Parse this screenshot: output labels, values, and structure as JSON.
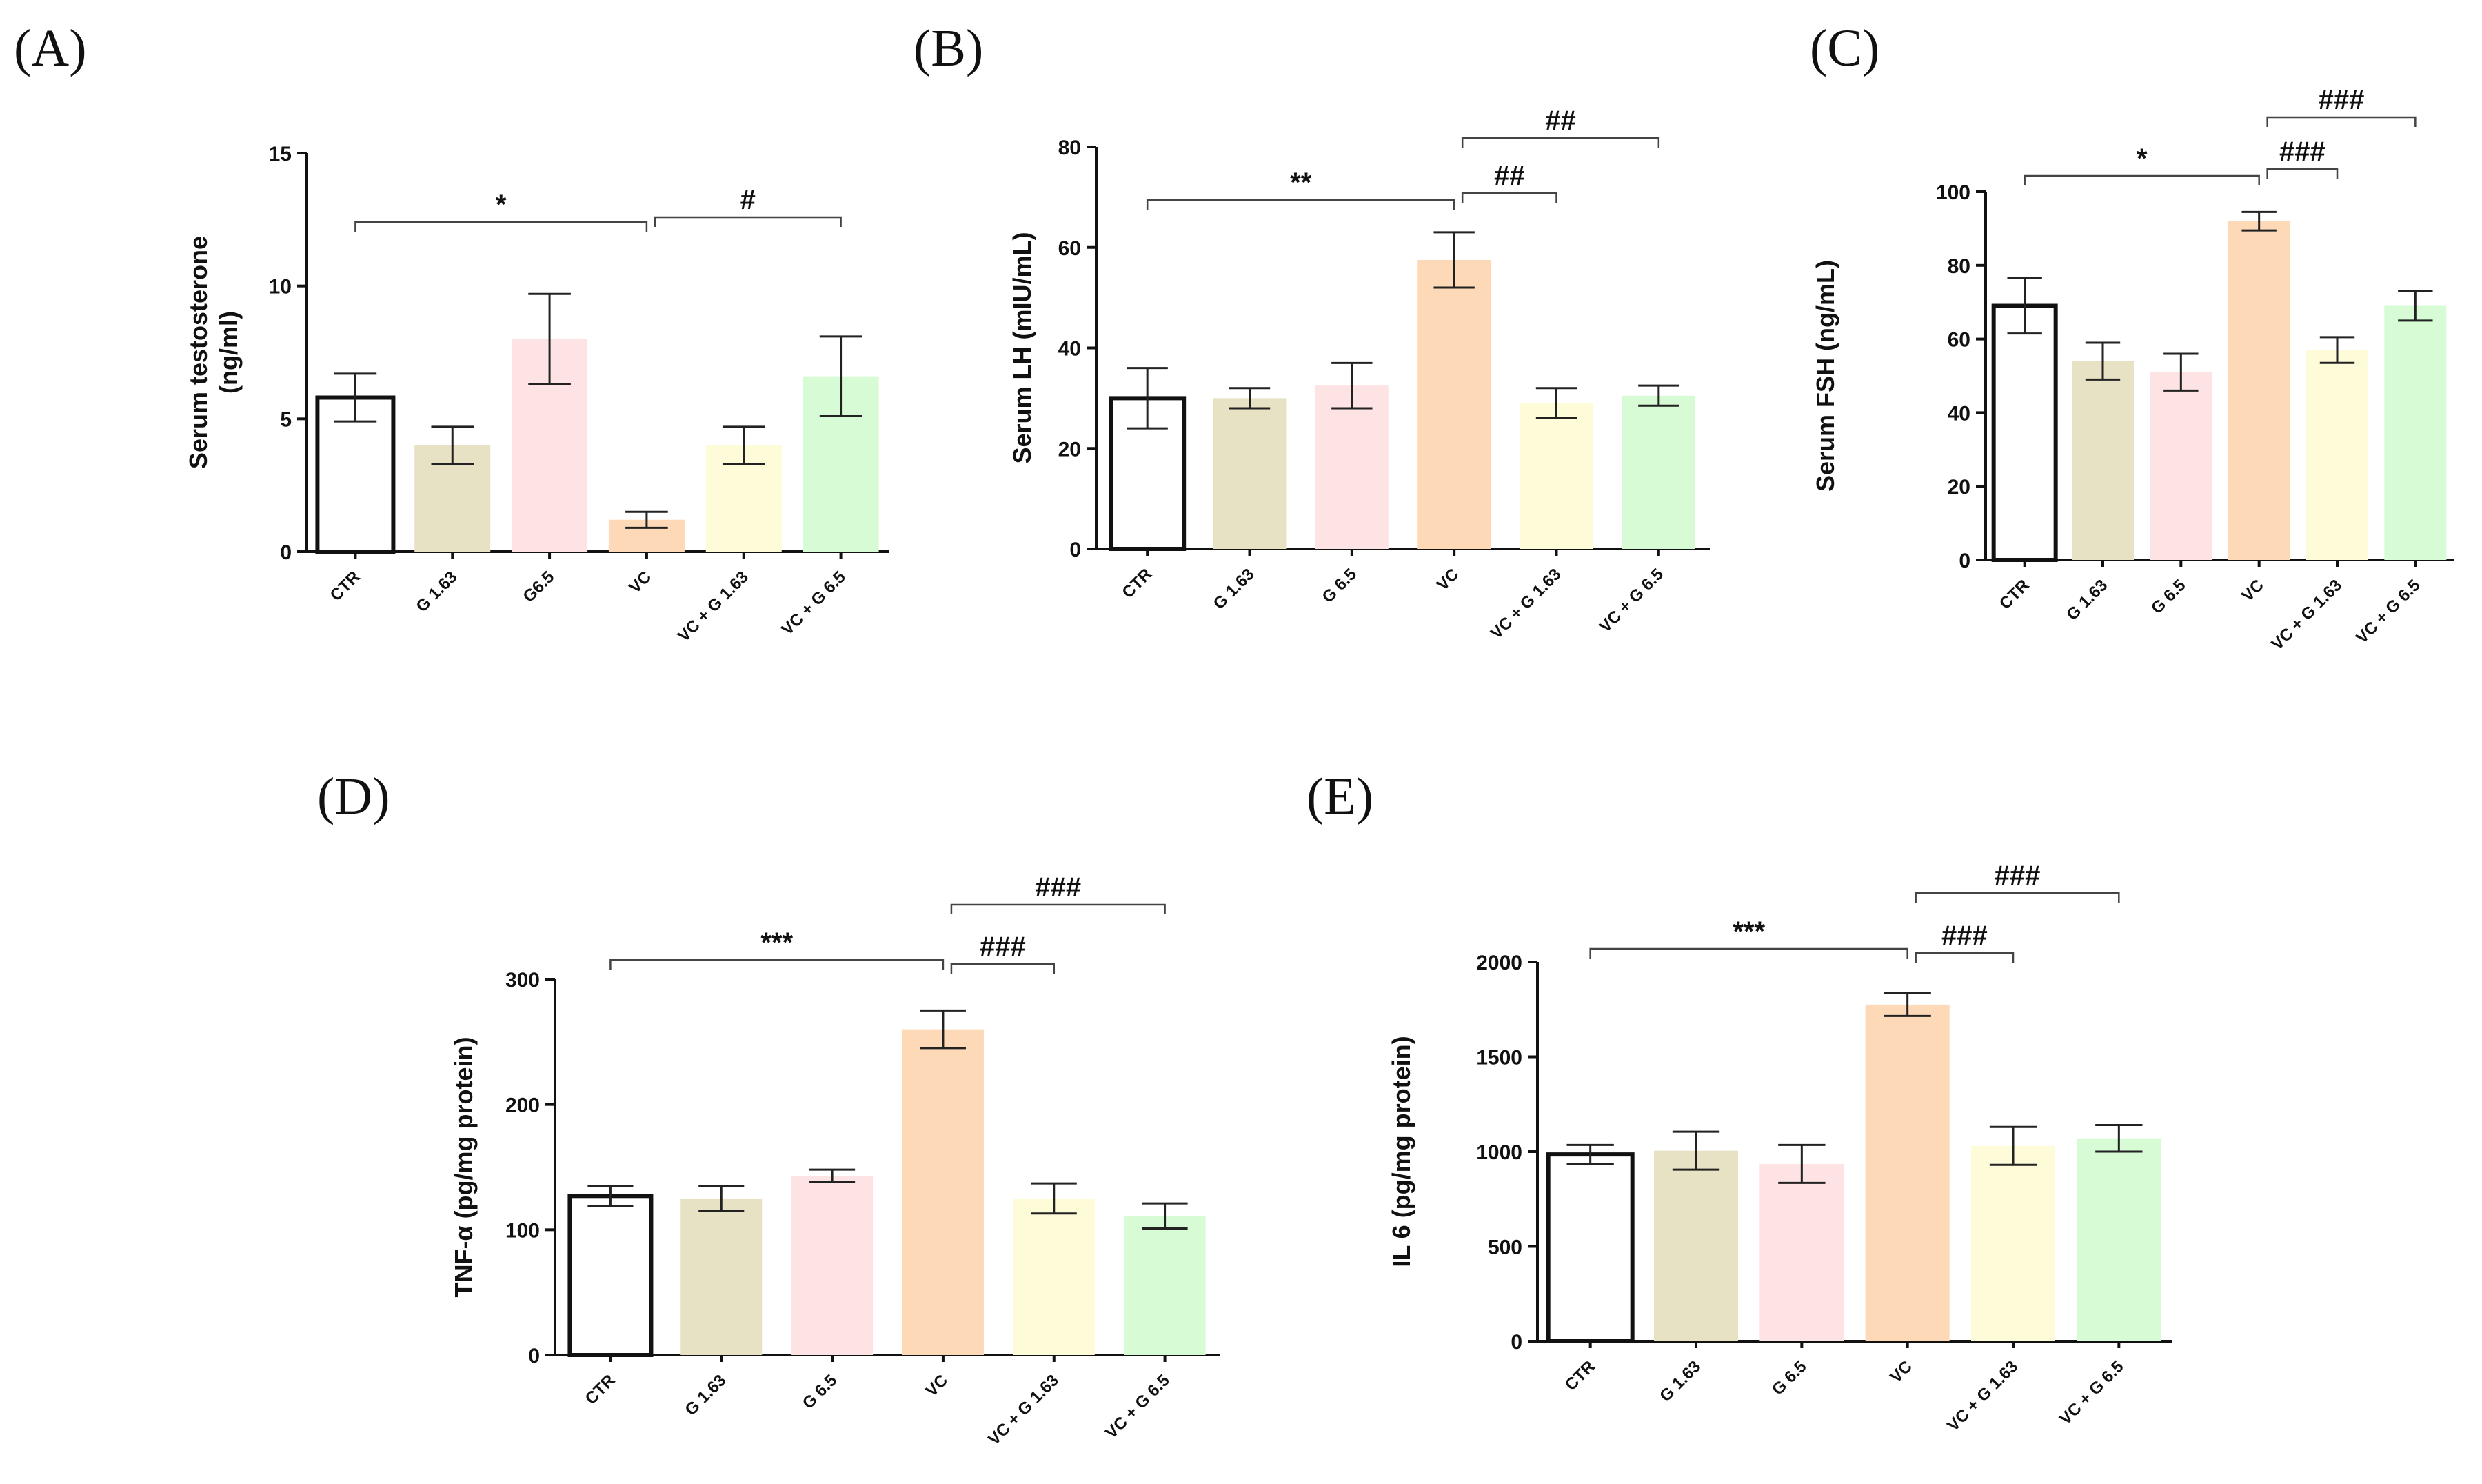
{
  "chart_data": [
    {
      "panel": "(A)",
      "type": "bar",
      "ylabel": "Serum testosterone\n(ng/ml)",
      "ylim": [
        0,
        15
      ],
      "yticks": [
        0,
        5,
        10,
        15
      ],
      "categories": [
        "CTR",
        "G 1.63",
        "G6.5",
        "VC",
        "VC + G 1.63",
        "VC + G 6.5"
      ],
      "values": [
        5.8,
        4.0,
        8.0,
        1.2,
        4.0,
        6.6
      ],
      "errors": [
        0.9,
        0.7,
        1.7,
        0.3,
        0.7,
        1.5
      ],
      "significance": [
        {
          "from": 0,
          "to": 3,
          "label": "*"
        },
        {
          "from": 3,
          "to": 5,
          "label": "#"
        }
      ]
    },
    {
      "panel": "(B)",
      "type": "bar",
      "ylabel": "Serum LH (mIU/mL)",
      "ylim": [
        0,
        80
      ],
      "yticks": [
        0,
        20,
        40,
        60,
        80
      ],
      "categories": [
        "CTR",
        "G 1.63",
        "G 6.5",
        "VC",
        "VC + G 1.63",
        "VC + G 6.5"
      ],
      "values": [
        30,
        30,
        32.5,
        57.5,
        29,
        30.5
      ],
      "errors": [
        6,
        2,
        4.5,
        5.5,
        3,
        2
      ],
      "significance": [
        {
          "from": 0,
          "to": 3,
          "label": "**"
        },
        {
          "from": 3,
          "to": 4,
          "label": "##"
        },
        {
          "from": 3,
          "to": 5,
          "label": "##"
        }
      ]
    },
    {
      "panel": "(C)",
      "type": "bar",
      "ylabel": "Serum FSH (ng/mL)",
      "ylim": [
        0,
        100
      ],
      "yticks": [
        0,
        20,
        40,
        60,
        80,
        100
      ],
      "categories": [
        "CTR",
        "G 1.63",
        "G 6.5",
        "VC",
        "VC + G 1.63",
        "VC + G 6.5"
      ],
      "values": [
        69,
        54,
        51,
        92,
        57,
        69
      ],
      "errors": [
        7.5,
        5,
        5,
        2.5,
        3.5,
        4
      ],
      "significance": [
        {
          "from": 0,
          "to": 3,
          "label": "*"
        },
        {
          "from": 3,
          "to": 4,
          "label": "###"
        },
        {
          "from": 3,
          "to": 5,
          "label": "###"
        }
      ]
    },
    {
      "panel": "(D)",
      "type": "bar",
      "ylabel": "TNF-α  (pg/mg protein)",
      "ylim": [
        0,
        300
      ],
      "yticks": [
        0,
        100,
        200,
        300
      ],
      "categories": [
        "CTR",
        "G 1.63",
        "G 6.5",
        "VC",
        "VC + G 1.63",
        "VC + G 6.5"
      ],
      "values": [
        127,
        125,
        143,
        260,
        125,
        111
      ],
      "errors": [
        8,
        10,
        5,
        15,
        12,
        10
      ],
      "significance": [
        {
          "from": 0,
          "to": 3,
          "label": "***"
        },
        {
          "from": 3,
          "to": 4,
          "label": "###"
        },
        {
          "from": 3,
          "to": 5,
          "label": "###"
        }
      ]
    },
    {
      "panel": "(E)",
      "type": "bar",
      "ylabel": "IL 6 (pg/mg protein)",
      "ylim": [
        0,
        2000
      ],
      "yticks": [
        0,
        500,
        1000,
        1500,
        2000
      ],
      "categories": [
        "CTR",
        "G 1.63",
        "G 6.5",
        "VC",
        "VC + G 1.63",
        "VC + G 6.5"
      ],
      "values": [
        985,
        1005,
        935,
        1775,
        1030,
        1070
      ],
      "errors": [
        50,
        100,
        100,
        60,
        100,
        70
      ],
      "significance": [
        {
          "from": 0,
          "to": 3,
          "label": "***"
        },
        {
          "from": 3,
          "to": 4,
          "label": "###"
        },
        {
          "from": 3,
          "to": 5,
          "label": "###"
        }
      ]
    }
  ],
  "colors": {
    "bars": [
      "#ffffff",
      "#e8e2c5",
      "#fde3e3",
      "#fdd9b7",
      "#fefbd9",
      "#d7fbd4"
    ],
    "outline": "#111111"
  }
}
